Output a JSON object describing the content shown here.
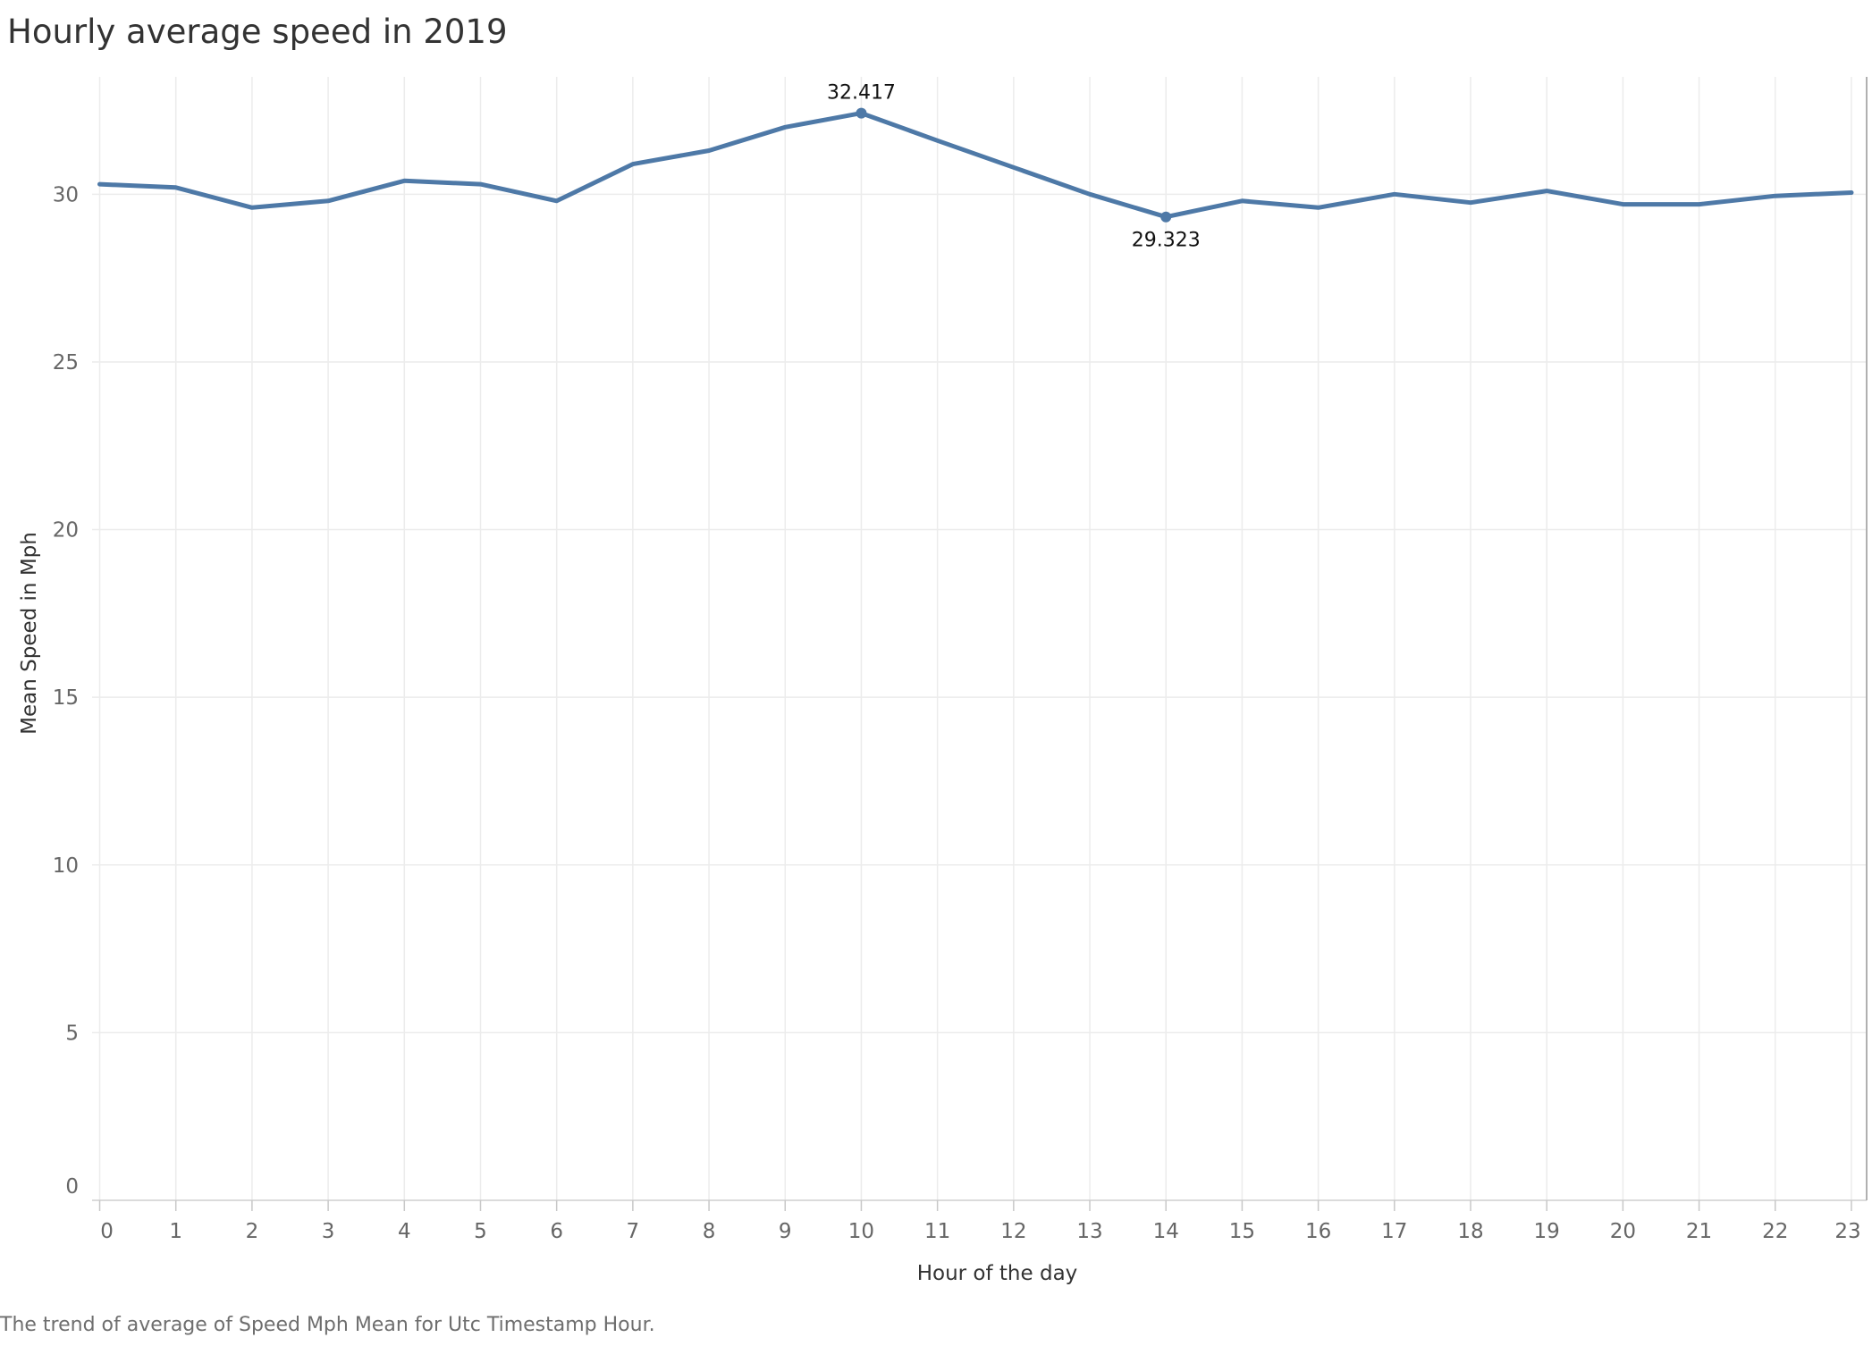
{
  "chart_data": {
    "type": "line",
    "title": "Hourly average speed in 2019",
    "xlabel": "Hour of the day",
    "ylabel": "Mean Speed in Mph",
    "caption": "The trend of average of Speed Mph Mean for Utc Timestamp Hour.",
    "x": [
      0,
      1,
      2,
      3,
      4,
      5,
      6,
      7,
      8,
      9,
      10,
      11,
      12,
      13,
      14,
      15,
      16,
      17,
      18,
      19,
      20,
      21,
      22,
      23
    ],
    "y_ticks": [
      0,
      5,
      10,
      15,
      20,
      25,
      30
    ],
    "ylim": [
      0,
      33.5
    ],
    "xlim": [
      -0.1,
      23.2
    ],
    "grid": true,
    "series": [
      {
        "values": [
          30.3,
          30.2,
          29.6,
          29.8,
          30.4,
          30.3,
          29.8,
          30.9,
          31.3,
          32.0,
          32.417,
          31.6,
          30.8,
          30.0,
          29.323,
          29.8,
          29.6,
          30.0,
          29.75,
          30.1,
          29.7,
          29.7,
          29.95,
          30.05
        ],
        "color": "#4e79a7"
      }
    ],
    "annotations": [
      {
        "x": 10,
        "label": "32.417",
        "position": "above"
      },
      {
        "x": 14,
        "label": "29.323",
        "position": "below"
      }
    ]
  }
}
